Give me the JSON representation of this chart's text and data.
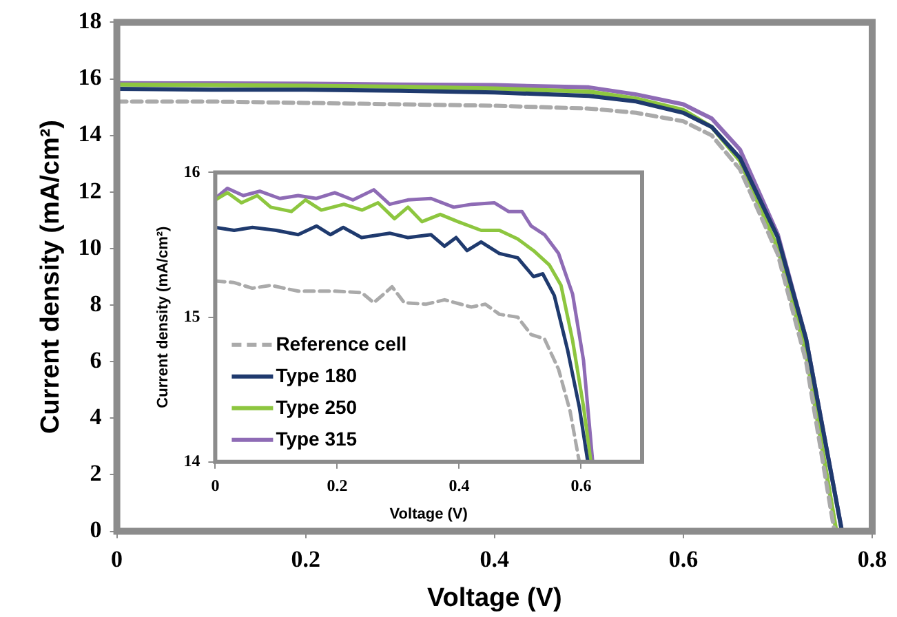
{
  "chart_data": [
    {
      "type": "line",
      "xlabel": "Voltage (V)",
      "ylabel": "Current density (mA/cm²)",
      "xlim": [
        0,
        0.8
      ],
      "xticks": [
        0,
        0.2,
        0.4,
        0.6,
        0.8
      ],
      "ylim": [
        0,
        18
      ],
      "yticks": [
        0,
        2,
        4,
        6,
        8,
        10,
        12,
        14,
        16,
        18
      ],
      "grid": false,
      "legend": false,
      "marker": "none",
      "series": [
        {
          "color": "#aaaaaa",
          "line_style": "dashed",
          "x": [
            0,
            0.1,
            0.2,
            0.3,
            0.4,
            0.5,
            0.55,
            0.6,
            0.63,
            0.66,
            0.7,
            0.73,
            0.76
          ],
          "values": [
            15.2,
            15.2,
            15.15,
            15.1,
            15.05,
            14.95,
            14.8,
            14.5,
            14.0,
            12.8,
            9.8,
            6.0,
            0
          ]
        },
        {
          "color": "#1f3a6e",
          "line_style": "solid",
          "x": [
            0,
            0.1,
            0.2,
            0.3,
            0.4,
            0.5,
            0.55,
            0.6,
            0.63,
            0.66,
            0.7,
            0.73,
            0.768
          ],
          "values": [
            15.65,
            15.62,
            15.62,
            15.58,
            15.52,
            15.4,
            15.2,
            14.8,
            14.3,
            13.2,
            10.4,
            6.8,
            0
          ]
        },
        {
          "color": "#8dc63f",
          "line_style": "solid",
          "x": [
            0,
            0.1,
            0.2,
            0.3,
            0.4,
            0.5,
            0.55,
            0.6,
            0.63,
            0.66,
            0.7,
            0.73,
            0.762
          ],
          "values": [
            15.8,
            15.78,
            15.76,
            15.72,
            15.66,
            15.55,
            15.3,
            14.9,
            14.3,
            13.1,
            10.0,
            6.3,
            0
          ]
        },
        {
          "color": "#8e6bb5",
          "line_style": "solid",
          "x": [
            0,
            0.1,
            0.2,
            0.3,
            0.4,
            0.5,
            0.55,
            0.6,
            0.63,
            0.66,
            0.7,
            0.73,
            0.768
          ],
          "values": [
            15.85,
            15.84,
            15.83,
            15.8,
            15.78,
            15.7,
            15.45,
            15.1,
            14.6,
            13.5,
            10.5,
            6.8,
            0
          ]
        }
      ]
    },
    {
      "type": "line",
      "xlabel": "Voltage (V)",
      "ylabel": "Current density (mA/cm²)",
      "xlim": [
        0,
        0.7
      ],
      "xticks": [
        0,
        0.2,
        0.4,
        0.6
      ],
      "ylim": [
        14,
        16
      ],
      "yticks": [
        14,
        15,
        16
      ],
      "grid": false,
      "legend": "bottom left",
      "marker": "none",
      "series": [
        {
          "name": "Reference cell",
          "color": "#aaaaaa",
          "line_style": "dashed",
          "x": [
            0,
            0.03,
            0.061,
            0.091,
            0.136,
            0.196,
            0.24,
            0.26,
            0.29,
            0.31,
            0.346,
            0.376,
            0.42,
            0.443,
            0.466,
            0.496,
            0.518,
            0.54,
            0.563,
            0.582,
            0.597
          ],
          "values": [
            15.25,
            15.24,
            15.2,
            15.22,
            15.18,
            15.18,
            15.17,
            15.1,
            15.21,
            15.1,
            15.09,
            15.12,
            15.07,
            15.09,
            15.02,
            15.0,
            14.88,
            14.85,
            14.64,
            14.35,
            14.0
          ]
        },
        {
          "name": "Type 180",
          "color": "#1f3a6e",
          "line_style": "solid",
          "x": [
            0,
            0.031,
            0.061,
            0.1,
            0.136,
            0.166,
            0.189,
            0.21,
            0.24,
            0.286,
            0.316,
            0.354,
            0.376,
            0.395,
            0.413,
            0.436,
            0.466,
            0.496,
            0.522,
            0.537,
            0.556,
            0.578,
            0.597,
            0.611
          ],
          "values": [
            15.62,
            15.6,
            15.62,
            15.6,
            15.57,
            15.63,
            15.57,
            15.62,
            15.55,
            15.58,
            15.55,
            15.57,
            15.49,
            15.55,
            15.46,
            15.52,
            15.44,
            15.41,
            15.28,
            15.3,
            15.15,
            14.77,
            14.38,
            14.0
          ]
        },
        {
          "name": "Type 250",
          "color": "#8dc63f",
          "line_style": "solid",
          "x": [
            0,
            0.02,
            0.043,
            0.069,
            0.091,
            0.125,
            0.148,
            0.174,
            0.211,
            0.241,
            0.267,
            0.294,
            0.316,
            0.339,
            0.369,
            0.398,
            0.436,
            0.466,
            0.496,
            0.522,
            0.548,
            0.567,
            0.586,
            0.604,
            0.616
          ],
          "values": [
            15.81,
            15.86,
            15.79,
            15.84,
            15.76,
            15.73,
            15.81,
            15.74,
            15.78,
            15.74,
            15.79,
            15.68,
            15.76,
            15.66,
            15.71,
            15.66,
            15.6,
            15.6,
            15.54,
            15.46,
            15.36,
            15.22,
            14.84,
            14.38,
            14.0
          ]
        },
        {
          "name": "Type 315",
          "color": "#8e6bb5",
          "line_style": "solid",
          "x": [
            0,
            0.02,
            0.046,
            0.073,
            0.106,
            0.136,
            0.166,
            0.196,
            0.226,
            0.26,
            0.286,
            0.316,
            0.354,
            0.391,
            0.421,
            0.458,
            0.481,
            0.503,
            0.518,
            0.54,
            0.563,
            0.586,
            0.604,
            0.619
          ],
          "values": [
            15.82,
            15.89,
            15.84,
            15.87,
            15.82,
            15.84,
            15.82,
            15.86,
            15.81,
            15.88,
            15.78,
            15.81,
            15.82,
            15.76,
            15.78,
            15.79,
            15.73,
            15.73,
            15.63,
            15.57,
            15.44,
            15.16,
            14.7,
            14.0
          ]
        }
      ]
    }
  ]
}
